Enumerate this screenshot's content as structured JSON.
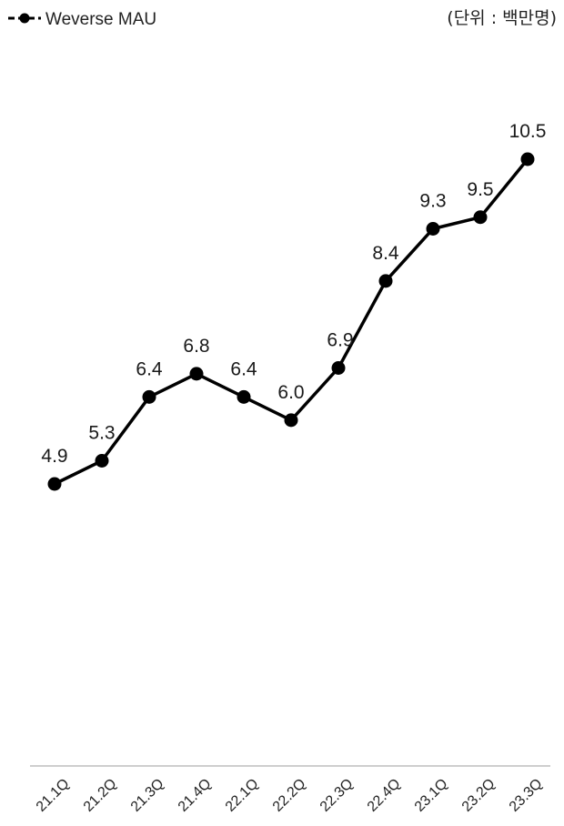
{
  "legend": {
    "label": "Weverse MAU"
  },
  "unit_note": "(단위 : 백만명)",
  "colors": {
    "line": "#000000",
    "axis": "#bdbdbd",
    "text": "#1a1a1a"
  },
  "chart_data": {
    "type": "line",
    "title": "",
    "xlabel": "",
    "ylabel": "",
    "categories": [
      "21.1Q",
      "21.2Q",
      "21.3Q",
      "21.4Q",
      "22.1Q",
      "22.2Q",
      "22.3Q",
      "22.4Q",
      "23.1Q",
      "23.2Q",
      "23.3Q"
    ],
    "series": [
      {
        "name": "Weverse MAU",
        "values": [
          4.9,
          5.3,
          6.4,
          6.8,
          6.4,
          6.0,
          6.9,
          8.4,
          9.3,
          9.5,
          10.5
        ],
        "labels": [
          "4.9",
          "5.3",
          "6.4",
          "6.8",
          "6.4",
          "6.0",
          "6.9",
          "8.4",
          "9.3",
          "9.5",
          "10.5"
        ]
      }
    ],
    "ylim": [
      0,
      12
    ],
    "grid": false,
    "legend_position": "top-left"
  }
}
